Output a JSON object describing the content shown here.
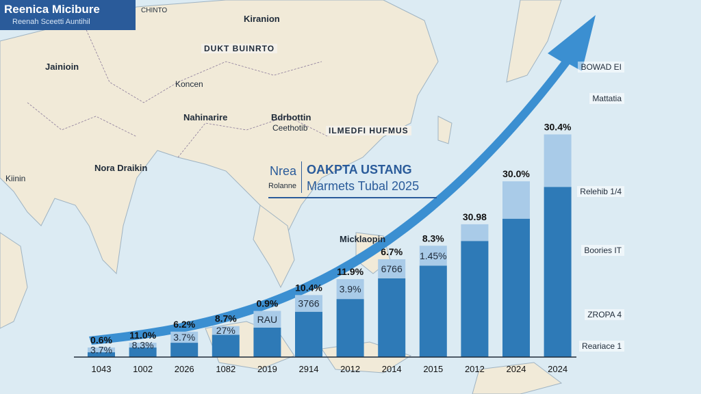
{
  "badge": {
    "title": "Reenica Micibure",
    "subtitle": "Reenah Sceetti Auntihil"
  },
  "map": {
    "labels": [
      "Kiranion",
      "Jainioin",
      "Koncen",
      "Nahinarire",
      "Bdrbottin",
      "Ceethotib",
      "Nora Draikin",
      "Kiinin",
      "Micklaopin",
      "CHINTO"
    ],
    "banners": [
      "DUKT BUINRTO",
      "ILMEDFI HUFMUS"
    ]
  },
  "headline": {
    "prefix_top": "Nrea",
    "prefix_bottom": "Rolanne",
    "title": "OAKPTA USTANG",
    "subtitle": "Marmets Tubal 2025"
  },
  "side_labels": [
    "BOWAD EI",
    "Mattatia",
    "Relehib 1/4",
    "Boories IT",
    "ZROPA 4",
    "Reariace 1"
  ],
  "colors": {
    "bar_light": "#a9cbe8",
    "bar_dark": "#2e7ab7",
    "arrow": "#3b8fd1",
    "badge": "#2a5b9a",
    "sea": "#dcebf3",
    "land": "#f1ead8"
  },
  "chart_data": {
    "type": "bar",
    "title": "OAKPTA USTANG",
    "subtitle": "Marmets Tubal 2025",
    "categories": [
      "1043",
      "1002",
      "2026",
      "1082",
      "2019",
      "2914",
      "2012",
      "2014",
      "2015",
      "2012",
      "2024",
      "2024"
    ],
    "value_labels": [
      "0.6%",
      "11.0%",
      "6.2%",
      "8.7%",
      "0.9%",
      "10.4%",
      "11.9%",
      "6.7%",
      "8.3%",
      "30.98",
      "30.0%",
      "30.4%"
    ],
    "inner_labels": [
      "3.7%",
      "8.3%",
      "3.7%",
      "27%",
      "RAU",
      "3766",
      "3.9%",
      "6766",
      "1.45%",
      "",
      "",
      ""
    ],
    "series": [
      {
        "values": [
          0.6,
          1.2,
          1.8,
          2.8,
          3.7,
          5.7,
          7.3,
          9.9,
          11.5,
          14.6,
          17.4,
          21.4
        ]
      },
      {
        "values": [
          0.6,
          0.6,
          1.4,
          1.1,
          2.1,
          2.1,
          2.5,
          2.4,
          2.5,
          2.1,
          4.7,
          6.6
        ]
      }
    ],
    "ylim": [
      0,
      32
    ],
    "legend": "none",
    "grid": false
  }
}
